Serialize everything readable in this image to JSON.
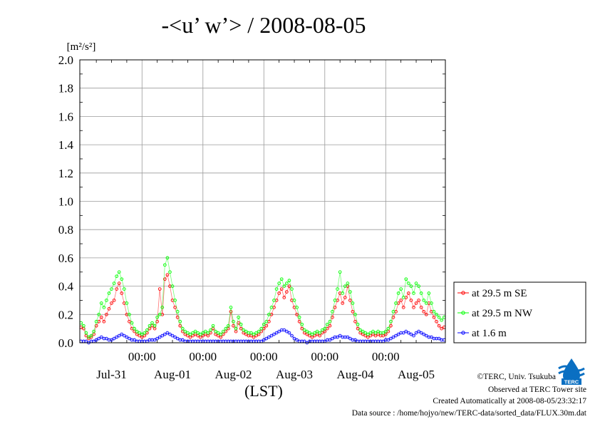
{
  "chart_data": {
    "type": "line",
    "title": "-<u’ w’> / 2008-08-05",
    "ylabel": "[m²/s²]",
    "xlabel": "(LST)",
    "ylim": [
      0,
      2.0
    ],
    "yticks": [
      "0.0",
      "0.2",
      "0.4",
      "0.6",
      "0.8",
      "1.0",
      "1.2",
      "1.4",
      "1.6",
      "1.8",
      "2.0"
    ],
    "xlim_hours": [
      -0.5,
      143.5
    ],
    "midnight_labels": [
      "00:00",
      "00:00",
      "00:00",
      "00:00",
      "00:00"
    ],
    "day_labels": [
      "Jul-31",
      "Aug-01",
      "Aug-02",
      "Aug-03",
      "Aug-04",
      "Aug-05"
    ],
    "grid": true,
    "legend_position": "right-bottom",
    "series": [
      {
        "name": "at 29.5 m SE",
        "color": "#ff0000",
        "x": [
          0,
          1,
          2,
          3,
          4,
          5,
          6,
          7,
          8,
          9,
          10,
          11,
          12,
          13,
          14,
          15,
          16,
          17,
          18,
          19,
          20,
          21,
          22,
          23,
          24,
          25,
          26,
          27,
          28,
          29,
          30,
          31,
          32,
          33,
          34,
          35,
          36,
          37,
          38,
          39,
          40,
          41,
          42,
          43,
          44,
          45,
          46,
          47,
          48,
          49,
          50,
          51,
          52,
          53,
          54,
          55,
          56,
          57,
          58,
          59,
          60,
          61,
          62,
          63,
          64,
          65,
          66,
          67,
          68,
          69,
          70,
          71,
          72,
          73,
          74,
          75,
          76,
          77,
          78,
          79,
          80,
          81,
          82,
          83,
          84,
          85,
          86,
          87,
          88,
          89,
          90,
          91,
          92,
          93,
          94,
          95,
          96,
          97,
          98,
          99,
          100,
          101,
          102,
          103,
          104,
          105,
          106,
          107,
          108,
          109,
          110,
          111,
          112,
          113,
          114,
          115,
          116,
          117,
          118,
          119,
          120,
          121,
          122,
          123,
          124,
          125,
          126,
          127,
          128,
          129,
          130,
          131,
          132,
          133,
          134,
          135,
          136,
          137,
          138,
          139,
          140,
          141,
          142,
          143
        ],
        "values": [
          0.11,
          0.1,
          0.05,
          0.03,
          0.04,
          0.06,
          0.12,
          0.15,
          0.18,
          0.15,
          0.2,
          0.24,
          0.28,
          0.3,
          0.38,
          0.42,
          0.35,
          0.28,
          0.2,
          0.15,
          0.1,
          0.08,
          0.06,
          0.05,
          0.04,
          0.05,
          0.07,
          0.1,
          0.12,
          0.1,
          0.15,
          0.38,
          0.2,
          0.45,
          0.48,
          0.4,
          0.3,
          0.25,
          0.18,
          0.12,
          0.08,
          0.06,
          0.05,
          0.04,
          0.05,
          0.06,
          0.05,
          0.04,
          0.05,
          0.06,
          0.05,
          0.07,
          0.1,
          0.06,
          0.05,
          0.04,
          0.06,
          0.08,
          0.1,
          0.22,
          0.12,
          0.08,
          0.14,
          0.1,
          0.07,
          0.06,
          0.05,
          0.05,
          0.04,
          0.05,
          0.06,
          0.08,
          0.1,
          0.12,
          0.15,
          0.2,
          0.25,
          0.3,
          0.35,
          0.38,
          0.32,
          0.36,
          0.4,
          0.3,
          0.25,
          0.2,
          0.15,
          0.1,
          0.07,
          0.06,
          0.05,
          0.04,
          0.05,
          0.06,
          0.05,
          0.07,
          0.08,
          0.1,
          0.12,
          0.18,
          0.25,
          0.3,
          0.35,
          0.28,
          0.32,
          0.4,
          0.3,
          0.22,
          0.15,
          0.1,
          0.07,
          0.06,
          0.05,
          0.04,
          0.05,
          0.06,
          0.05,
          0.06,
          0.05,
          0.05,
          0.06,
          0.08,
          0.12,
          0.18,
          0.22,
          0.28,
          0.3,
          0.25,
          0.32,
          0.35,
          0.3,
          0.25,
          0.28,
          0.3,
          0.25,
          0.22,
          0.2,
          0.28,
          0.22,
          0.18,
          0.15,
          0.12,
          0.1,
          0.11
        ]
      },
      {
        "name": "at 29.5 m NW",
        "color": "#00ff00",
        "x": [
          0,
          1,
          2,
          3,
          4,
          5,
          6,
          7,
          8,
          9,
          10,
          11,
          12,
          13,
          14,
          15,
          16,
          17,
          18,
          19,
          20,
          21,
          22,
          23,
          24,
          25,
          26,
          27,
          28,
          29,
          30,
          31,
          32,
          33,
          34,
          35,
          36,
          37,
          38,
          39,
          40,
          41,
          42,
          43,
          44,
          45,
          46,
          47,
          48,
          49,
          50,
          51,
          52,
          53,
          54,
          55,
          56,
          57,
          58,
          59,
          60,
          61,
          62,
          63,
          64,
          65,
          66,
          67,
          68,
          69,
          70,
          71,
          72,
          73,
          74,
          75,
          76,
          77,
          78,
          79,
          80,
          81,
          82,
          83,
          84,
          85,
          86,
          87,
          88,
          89,
          90,
          91,
          92,
          93,
          94,
          95,
          96,
          97,
          98,
          99,
          100,
          101,
          102,
          103,
          104,
          105,
          106,
          107,
          108,
          109,
          110,
          111,
          112,
          113,
          114,
          115,
          116,
          117,
          118,
          119,
          120,
          121,
          122,
          123,
          124,
          125,
          126,
          127,
          128,
          129,
          130,
          131,
          132,
          133,
          134,
          135,
          136,
          137,
          138,
          139,
          140,
          141,
          142,
          143
        ],
        "values": [
          0.14,
          0.12,
          0.07,
          0.04,
          0.05,
          0.08,
          0.15,
          0.2,
          0.28,
          0.25,
          0.3,
          0.35,
          0.38,
          0.42,
          0.47,
          0.5,
          0.45,
          0.38,
          0.28,
          0.2,
          0.14,
          0.1,
          0.08,
          0.07,
          0.06,
          0.07,
          0.09,
          0.12,
          0.14,
          0.12,
          0.18,
          0.2,
          0.25,
          0.55,
          0.6,
          0.5,
          0.4,
          0.3,
          0.22,
          0.15,
          0.1,
          0.08,
          0.07,
          0.06,
          0.07,
          0.08,
          0.07,
          0.06,
          0.07,
          0.08,
          0.07,
          0.09,
          0.12,
          0.08,
          0.07,
          0.06,
          0.08,
          0.1,
          0.12,
          0.25,
          0.15,
          0.1,
          0.18,
          0.13,
          0.09,
          0.08,
          0.07,
          0.07,
          0.06,
          0.07,
          0.08,
          0.1,
          0.13,
          0.15,
          0.2,
          0.25,
          0.3,
          0.38,
          0.42,
          0.45,
          0.4,
          0.42,
          0.44,
          0.38,
          0.3,
          0.25,
          0.18,
          0.13,
          0.09,
          0.08,
          0.07,
          0.06,
          0.07,
          0.08,
          0.07,
          0.09,
          0.1,
          0.13,
          0.15,
          0.22,
          0.3,
          0.38,
          0.5,
          0.35,
          0.4,
          0.42,
          0.36,
          0.28,
          0.2,
          0.13,
          0.09,
          0.08,
          0.07,
          0.06,
          0.07,
          0.08,
          0.07,
          0.08,
          0.07,
          0.07,
          0.08,
          0.1,
          0.15,
          0.22,
          0.28,
          0.35,
          0.38,
          0.32,
          0.45,
          0.42,
          0.4,
          0.35,
          0.42,
          0.4,
          0.35,
          0.3,
          0.28,
          0.35,
          0.28,
          0.22,
          0.2,
          0.18,
          0.16,
          0.18
        ]
      },
      {
        "name": "at 1.6 m",
        "color": "#0000ff",
        "x": [
          0,
          1,
          2,
          3,
          4,
          5,
          6,
          7,
          8,
          9,
          10,
          11,
          12,
          13,
          14,
          15,
          16,
          17,
          18,
          19,
          20,
          21,
          22,
          23,
          24,
          25,
          26,
          27,
          28,
          29,
          30,
          31,
          32,
          33,
          34,
          35,
          36,
          37,
          38,
          39,
          40,
          41,
          42,
          43,
          44,
          45,
          46,
          47,
          48,
          49,
          50,
          51,
          52,
          53,
          54,
          55,
          56,
          57,
          58,
          59,
          60,
          61,
          62,
          63,
          64,
          65,
          66,
          67,
          68,
          69,
          70,
          71,
          72,
          73,
          74,
          75,
          76,
          77,
          78,
          79,
          80,
          81,
          82,
          83,
          84,
          85,
          86,
          87,
          88,
          89,
          90,
          91,
          92,
          93,
          94,
          95,
          96,
          97,
          98,
          99,
          100,
          101,
          102,
          103,
          104,
          105,
          106,
          107,
          108,
          109,
          110,
          111,
          112,
          113,
          114,
          115,
          116,
          117,
          118,
          119,
          120,
          121,
          122,
          123,
          124,
          125,
          126,
          127,
          128,
          129,
          130,
          131,
          132,
          133,
          134,
          135,
          136,
          137,
          138,
          139,
          140,
          141,
          142,
          143
        ],
        "values": [
          0.01,
          0.01,
          0.01,
          0.0,
          0.01,
          0.01,
          0.02,
          0.03,
          0.04,
          0.03,
          0.03,
          0.02,
          0.02,
          0.03,
          0.04,
          0.05,
          0.06,
          0.05,
          0.04,
          0.03,
          0.02,
          0.02,
          0.01,
          0.01,
          0.01,
          0.01,
          0.01,
          0.02,
          0.02,
          0.02,
          0.03,
          0.04,
          0.05,
          0.06,
          0.07,
          0.06,
          0.05,
          0.04,
          0.03,
          0.02,
          0.02,
          0.01,
          0.01,
          0.01,
          0.01,
          0.01,
          0.01,
          0.01,
          0.01,
          0.01,
          0.01,
          0.01,
          0.01,
          0.01,
          0.01,
          0.01,
          0.01,
          0.01,
          0.01,
          0.01,
          0.01,
          0.01,
          0.01,
          0.01,
          0.01,
          0.01,
          0.01,
          0.01,
          0.01,
          0.01,
          0.01,
          0.01,
          0.02,
          0.03,
          0.04,
          0.05,
          0.06,
          0.07,
          0.08,
          0.09,
          0.09,
          0.08,
          0.07,
          0.05,
          0.03,
          0.02,
          0.01,
          0.01,
          0.01,
          0.0,
          0.01,
          0.01,
          0.01,
          0.01,
          0.01,
          0.01,
          0.01,
          0.02,
          0.02,
          0.03,
          0.04,
          0.04,
          0.05,
          0.04,
          0.04,
          0.04,
          0.03,
          0.02,
          0.02,
          0.01,
          0.01,
          0.01,
          0.01,
          0.01,
          0.01,
          0.01,
          0.01,
          0.01,
          0.01,
          0.01,
          0.02,
          0.02,
          0.03,
          0.04,
          0.05,
          0.06,
          0.07,
          0.07,
          0.08,
          0.07,
          0.06,
          0.05,
          0.07,
          0.08,
          0.07,
          0.06,
          0.05,
          0.04,
          0.04,
          0.03,
          0.03,
          0.03,
          0.02,
          0.02
        ]
      }
    ]
  },
  "footer": {
    "copyright": "©TERC, Univ. Tsukuba",
    "observed": "Observed at TERC Tower site",
    "created": "Created Automatically at 2008-08-05/23:32:17",
    "source": "Data source : /home/hojyo/new/TERC-data/sorted_data/FLUX.30m.dat",
    "logo_text": "TERC"
  }
}
